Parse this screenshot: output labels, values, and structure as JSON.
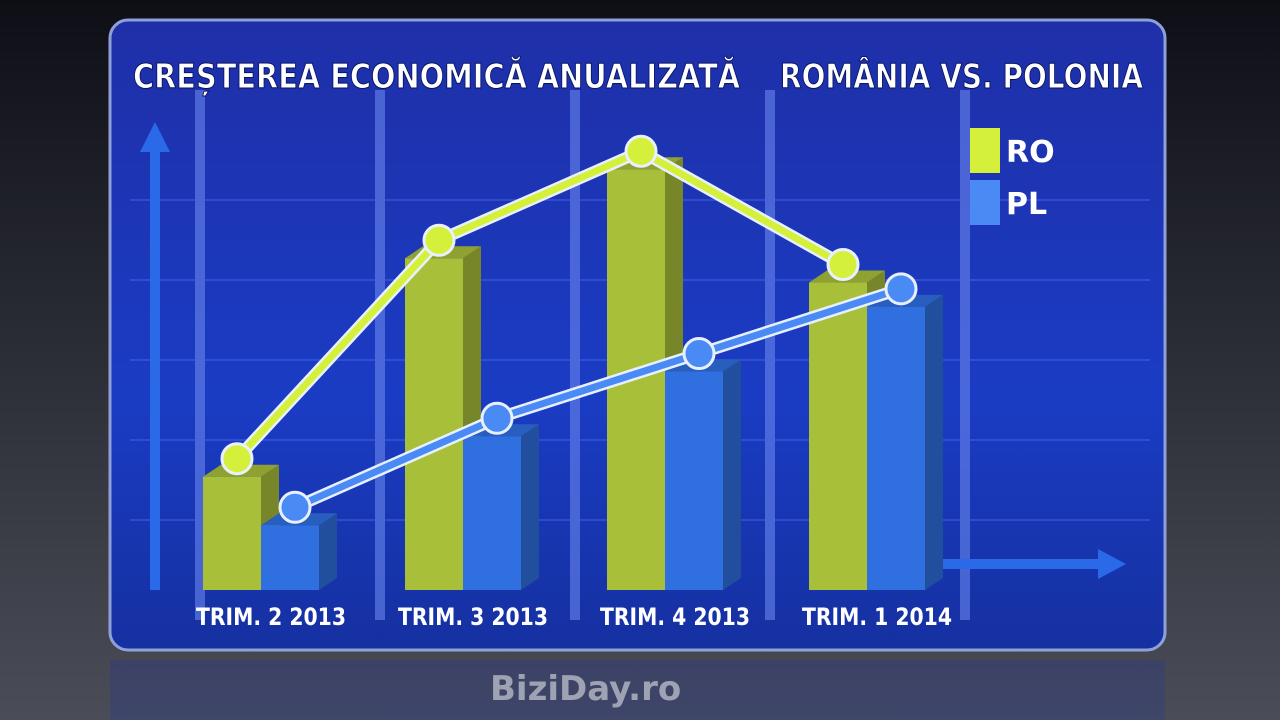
{
  "chart_data": {
    "type": "bar-line",
    "title": "CREȘTEREA ECONOMICĂ ANUALIZATĂ",
    "subtitle": "ROMÂNIA VS. POLONIA",
    "categories": [
      "TRIM. 2 2013",
      "TRIM. 3 2013",
      "TRIM. 4 2013",
      "TRIM. 1 2014"
    ],
    "series": [
      {
        "name": "RO",
        "color": "#a8bf3a",
        "line_color": "#d4f03a",
        "values": [
          1.4,
          4.1,
          5.2,
          3.8
        ]
      },
      {
        "name": "PL",
        "color": "#2f6fe0",
        "line_color": "#4a8af5",
        "values": [
          0.8,
          1.9,
          2.7,
          3.5
        ]
      }
    ],
    "ylim": [
      0,
      5.5
    ],
    "watermark": "BiziDay.ro"
  }
}
